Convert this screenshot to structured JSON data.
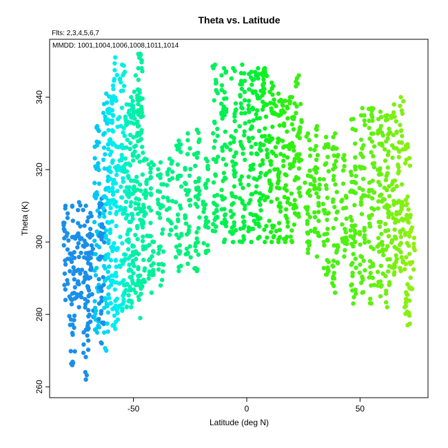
{
  "chart_data": {
    "type": "scatter",
    "title": "Theta vs. Latitude",
    "subtitle": "Flts: 2,3,4,5,6,7",
    "annotation": "MMDD: 1001,1004,1006,1008,1011,1014",
    "xlabel": "Latitude (deg N)",
    "ylabel": "Theta (K)",
    "xlim": [
      -87,
      80
    ],
    "ylim": [
      257,
      356
    ],
    "x_ticks": [
      -50,
      0,
      50
    ],
    "y_ticks": [
      260,
      280,
      300,
      320,
      340
    ],
    "grid": false,
    "legend": "none",
    "color_scale": "points colored by latitude: blue (south) through cyan and green to yellow-green (north)",
    "tracks": [
      {
        "x": -80,
        "y_min": 284,
        "y_max": 310,
        "color": "#1a8fe8"
      },
      {
        "x": -77,
        "y_min": 266,
        "y_max": 310,
        "color": "#1a8fe8"
      },
      {
        "x": -74,
        "y_min": 282,
        "y_max": 311,
        "color": "#1a8fe8"
      },
      {
        "x": -71,
        "y_min": 262,
        "y_max": 310,
        "color": "#1a8fe8"
      },
      {
        "x": -69,
        "y_min": 278,
        "y_max": 308,
        "color": "#1a8fe8"
      },
      {
        "x": -66,
        "y_min": 275,
        "y_max": 332,
        "color": "#00c8f0"
      },
      {
        "x": -64,
        "y_min": 272,
        "y_max": 312,
        "color": "#1a8fe8"
      },
      {
        "x": -62,
        "y_min": 270,
        "y_max": 341,
        "color": "#00d8f0"
      },
      {
        "x": -60,
        "y_min": 283,
        "y_max": 340,
        "color": "#00e8f0"
      },
      {
        "x": -58,
        "y_min": 276,
        "y_max": 351,
        "color": "#00ecf0"
      },
      {
        "x": -55,
        "y_min": 281,
        "y_max": 349,
        "color": "#00f0e0"
      },
      {
        "x": -53,
        "y_min": 282,
        "y_max": 338,
        "color": "#00f0c0"
      },
      {
        "x": -51,
        "y_min": 282,
        "y_max": 340,
        "color": "#00f0b8"
      },
      {
        "x": -49,
        "y_min": 286,
        "y_max": 346,
        "color": "#00f0a8"
      },
      {
        "x": -47,
        "y_min": 279,
        "y_max": 352,
        "color": "#00f0a0"
      },
      {
        "x": -45,
        "y_min": 289,
        "y_max": 323,
        "color": "#00f0a0"
      },
      {
        "x": -42,
        "y_min": 286,
        "y_max": 322,
        "color": "#00f098"
      },
      {
        "x": -38,
        "y_min": 288,
        "y_max": 322,
        "color": "#00f090"
      },
      {
        "x": -34,
        "y_min": 302,
        "y_max": 323,
        "color": "#00f088"
      },
      {
        "x": -30,
        "y_min": 292,
        "y_max": 328,
        "color": "#00f080"
      },
      {
        "x": -26,
        "y_min": 294,
        "y_max": 330,
        "color": "#00f078"
      },
      {
        "x": -22,
        "y_min": 292,
        "y_max": 331,
        "color": "#00f070"
      },
      {
        "x": -18,
        "y_min": 297,
        "y_max": 323,
        "color": "#00f068"
      },
      {
        "x": -14,
        "y_min": 303,
        "y_max": 349,
        "color": "#00f060"
      },
      {
        "x": -10,
        "y_min": 300,
        "y_max": 348,
        "color": "#00f050"
      },
      {
        "x": -6,
        "y_min": 300,
        "y_max": 348,
        "color": "#00f048"
      },
      {
        "x": -2,
        "y_min": 300,
        "y_max": 349,
        "color": "#00f040"
      },
      {
        "x": 2,
        "y_min": 300,
        "y_max": 347,
        "color": "#00f038"
      },
      {
        "x": 5,
        "y_min": 301,
        "y_max": 348,
        "color": "#00f030"
      },
      {
        "x": 8,
        "y_min": 300,
        "y_max": 348,
        "color": "#10f020"
      },
      {
        "x": 11,
        "y_min": 300,
        "y_max": 344,
        "color": "#18f018"
      },
      {
        "x": 14,
        "y_min": 300,
        "y_max": 341,
        "color": "#20f010"
      },
      {
        "x": 17,
        "y_min": 300,
        "y_max": 339,
        "color": "#28f010"
      },
      {
        "x": 20,
        "y_min": 300,
        "y_max": 340,
        "color": "#30f010"
      },
      {
        "x": 23,
        "y_min": 307,
        "y_max": 346,
        "color": "#38f010"
      },
      {
        "x": 27,
        "y_min": 297,
        "y_max": 330,
        "color": "#40f010"
      },
      {
        "x": 31,
        "y_min": 296,
        "y_max": 332,
        "color": "#40f010"
      },
      {
        "x": 35,
        "y_min": 291,
        "y_max": 329,
        "color": "#48f010"
      },
      {
        "x": 39,
        "y_min": 286,
        "y_max": 330,
        "color": "#48f010"
      },
      {
        "x": 43,
        "y_min": 296,
        "y_max": 324,
        "color": "#50f010"
      },
      {
        "x": 47,
        "y_min": 283,
        "y_max": 334,
        "color": "#50f010"
      },
      {
        "x": 51,
        "y_min": 286,
        "y_max": 337,
        "color": "#58f010"
      },
      {
        "x": 55,
        "y_min": 283,
        "y_max": 337,
        "color": "#60f010"
      },
      {
        "x": 59,
        "y_min": 285,
        "y_max": 336,
        "color": "#68f010"
      },
      {
        "x": 62,
        "y_min": 282,
        "y_max": 335,
        "color": "#70f010"
      },
      {
        "x": 65,
        "y_min": 291,
        "y_max": 338,
        "color": "#78f010"
      },
      {
        "x": 68,
        "y_min": 292,
        "y_max": 340,
        "color": "#80f010"
      },
      {
        "x": 71,
        "y_min": 277,
        "y_max": 327,
        "color": "#88f010"
      },
      {
        "x": 73,
        "y_min": 287,
        "y_max": 304,
        "color": "#90f010"
      }
    ]
  }
}
